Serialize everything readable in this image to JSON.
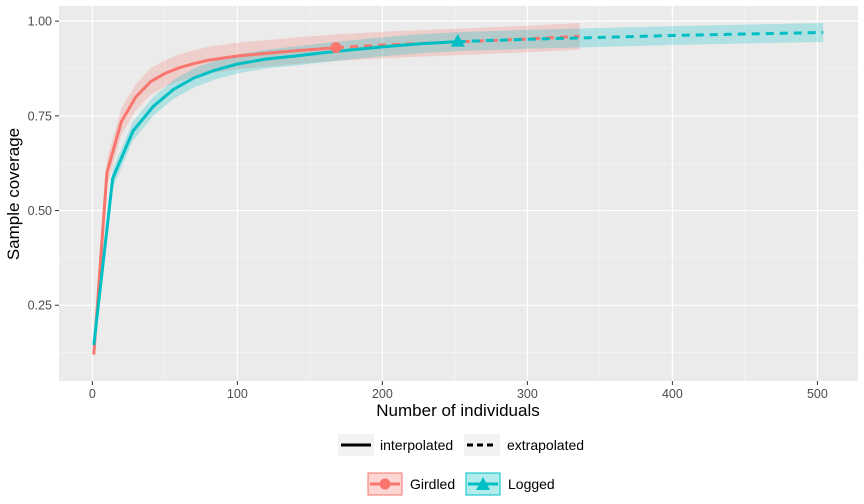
{
  "chart_data": {
    "type": "line",
    "xlabel": "Number of individuals",
    "ylabel": "Sample coverage",
    "xlim": [
      -23,
      528
    ],
    "ylim": [
      0.05,
      1.04
    ],
    "xticks": [
      0,
      100,
      200,
      300,
      400,
      500
    ],
    "xtick_labels": [
      "0",
      "100",
      "200",
      "300",
      "400",
      "500"
    ],
    "yticks": [
      0.25,
      0.5,
      0.75,
      1.0
    ],
    "ytick_labels": [
      "0.25",
      "0.50",
      "0.75",
      "1.00"
    ],
    "grid": true,
    "legend_position": "bottom",
    "linetype_legend": [
      {
        "label": "interpolated",
        "dash": "solid"
      },
      {
        "label": "extrapolated",
        "dash": "dashed"
      }
    ],
    "series": [
      {
        "name": "Girdled",
        "color": "#F8766D",
        "marker": "circle",
        "observed": {
          "x": 168,
          "y": 0.93
        },
        "interpolated": {
          "x": [
            1,
            10,
            20,
            30,
            40,
            50,
            60,
            70,
            80,
            100,
            120,
            140,
            168
          ],
          "y": [
            0.12,
            0.6,
            0.735,
            0.8,
            0.84,
            0.862,
            0.877,
            0.888,
            0.897,
            0.908,
            0.915,
            0.922,
            0.93
          ]
        },
        "extrapolated": {
          "x": [
            168,
            200,
            250,
            300,
            336
          ],
          "y": [
            0.93,
            0.937,
            0.945,
            0.953,
            0.96
          ]
        },
        "ci_half_width": 0.035
      },
      {
        "name": "Logged",
        "color": "#00BFC4",
        "marker": "triangle",
        "observed": {
          "x": 252,
          "y": 0.946
        },
        "interpolated": {
          "x": [
            1,
            14,
            28,
            42,
            56,
            70,
            84,
            100,
            120,
            140,
            160,
            180,
            200,
            225,
            252
          ],
          "y": [
            0.145,
            0.585,
            0.71,
            0.775,
            0.82,
            0.85,
            0.87,
            0.887,
            0.9,
            0.908,
            0.917,
            0.925,
            0.932,
            0.94,
            0.946
          ]
        },
        "extrapolated": {
          "x": [
            252,
            300,
            350,
            400,
            450,
            504
          ],
          "y": [
            0.946,
            0.952,
            0.957,
            0.962,
            0.966,
            0.97
          ]
        },
        "ci_half_width": 0.025
      }
    ]
  }
}
